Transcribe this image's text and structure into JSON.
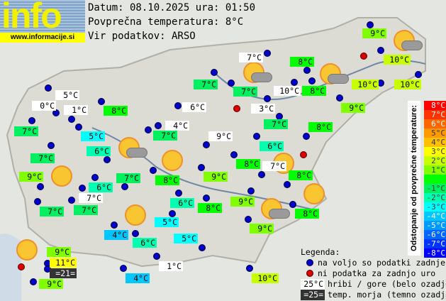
{
  "header": {
    "logo_text": "info",
    "logo_url": "www.informacije.si",
    "date_line": "Datum: 08.10.2025 ura: 01:50",
    "avg_line": "Povprečna temperatura: 8°C",
    "source_line": "Vir podatkov: ARSO"
  },
  "scale": {
    "title": "Odstopanje od povprečne temperature:",
    "steps": [
      {
        "label": "8°C",
        "color": "#ff0000"
      },
      {
        "label": "7°C",
        "color": "#ff3300"
      },
      {
        "label": "6°C",
        "color": "#ff6600"
      },
      {
        "label": "5°C",
        "color": "#ff9900"
      },
      {
        "label": "4°C",
        "color": "#ffc000"
      },
      {
        "label": "3°C",
        "color": "#ffff00"
      },
      {
        "label": "2°C",
        "color": "#c8ff00"
      },
      {
        "label": "1°C",
        "color": "#80ff00"
      },
      {
        "label": "",
        "color": "#00ff00"
      },
      {
        "label": "-1°C",
        "color": "#00f060"
      },
      {
        "label": "-2°C",
        "color": "#00ffb0"
      },
      {
        "label": "-3°C",
        "color": "#00ffff"
      },
      {
        "label": "-4°C",
        "color": "#00c8ff"
      },
      {
        "label": "-5°C",
        "color": "#0099ff"
      },
      {
        "label": "-6°C",
        "color": "#0066ff"
      },
      {
        "label": "-7°C",
        "color": "#0033ff"
      },
      {
        "label": "-8°C",
        "color": "#0000ff"
      }
    ]
  },
  "legend": {
    "title": "Legenda:",
    "available": "na voljo so podatki zadnje ure",
    "missing": "ni podatka za zadnjo uro",
    "mountain_sample": "25°C",
    "mountain_text": "hribi / gore (belo ozadje)",
    "sea_sample": "=25=",
    "sea_text": "temp. morja (temno ozadje)"
  },
  "colors": {
    "mountain_bg": "#ffffff",
    "sea_bg": "#333333",
    "station_ok": "#0000cc",
    "station_missing": "#dd0000"
  },
  "stations": [
    {
      "t": "9°C",
      "c": "#80ff00"
    },
    {
      "t": "7°C",
      "c": "#ffffff"
    },
    {
      "t": "8°C",
      "c": "#00ff00"
    },
    {
      "t": "10°C",
      "c": "#c8ff00"
    },
    {
      "t": "7°C",
      "c": "#00f060"
    },
    {
      "t": "7°C",
      "c": "#00f060"
    },
    {
      "t": "10°C",
      "c": "#ffffff"
    },
    {
      "t": "8°C",
      "c": "#00ff00"
    },
    {
      "t": "10°C",
      "c": "#c8ff00"
    },
    {
      "t": "10°C",
      "c": "#c8ff00"
    },
    {
      "t": "5°C",
      "c": "#ffffff"
    },
    {
      "t": "0°C",
      "c": "#ffffff"
    },
    {
      "t": "1°C",
      "c": "#ffffff"
    },
    {
      "t": "8°C",
      "c": "#00ff00"
    },
    {
      "t": "6°C",
      "c": "#ffffff"
    },
    {
      "t": "3°C",
      "c": "#ffffff"
    },
    {
      "t": "9°C",
      "c": "#80ff00"
    },
    {
      "t": "7°C",
      "c": "#00f060"
    },
    {
      "t": "4°C",
      "c": "#ffffff"
    },
    {
      "t": "7°C",
      "c": "#00f060"
    },
    {
      "t": "8°C",
      "c": "#00ff00"
    },
    {
      "t": "5°C",
      "c": "#00ffff"
    },
    {
      "t": "9°C",
      "c": "#ffffff"
    },
    {
      "t": "7°C",
      "c": "#00f060"
    },
    {
      "t": "6°C",
      "c": "#00ffb0"
    },
    {
      "t": "6°C",
      "c": "#00ffb0"
    },
    {
      "t": "7°C",
      "c": "#00f060"
    },
    {
      "t": "8°C",
      "c": "#00ff00"
    },
    {
      "t": "7°C",
      "c": "#ffffff"
    },
    {
      "t": "8°C",
      "c": "#00ff00"
    },
    {
      "t": "9°C",
      "c": "#80ff00"
    },
    {
      "t": "7°C",
      "c": "#00f060"
    },
    {
      "t": "8°C",
      "c": "#00ff00"
    },
    {
      "t": "9°C",
      "c": "#80ff00"
    },
    {
      "t": "6°C",
      "c": "#00ffb0"
    },
    {
      "t": "7°C",
      "c": "#ffffff"
    },
    {
      "t": "6°C",
      "c": "#00ffb0"
    },
    {
      "t": "9°C",
      "c": "#80ff00"
    },
    {
      "t": "8°C",
      "c": "#00ff00"
    },
    {
      "t": "8°C",
      "c": "#00ff00"
    },
    {
      "t": "7°C",
      "c": "#00f060"
    },
    {
      "t": "7°C",
      "c": "#00f060"
    },
    {
      "t": "5°C",
      "c": "#00ffff"
    },
    {
      "t": "9°C",
      "c": "#80ff00"
    },
    {
      "t": "4°C",
      "c": "#00c8ff"
    },
    {
      "t": "6°C",
      "c": "#00ffb0"
    },
    {
      "t": "5°C",
      "c": "#00ffff"
    },
    {
      "t": "9°C",
      "c": "#80ff00"
    },
    {
      "t": "11°C",
      "c": "#ffff00"
    },
    {
      "t": "=21=",
      "c": "#333333"
    },
    {
      "t": "9°C",
      "c": "#80ff00"
    },
    {
      "t": "1°C",
      "c": "#ffffff"
    },
    {
      "t": "4°C",
      "c": "#00c8ff"
    },
    {
      "t": "10°C",
      "c": "#c8ff00"
    }
  ]
}
